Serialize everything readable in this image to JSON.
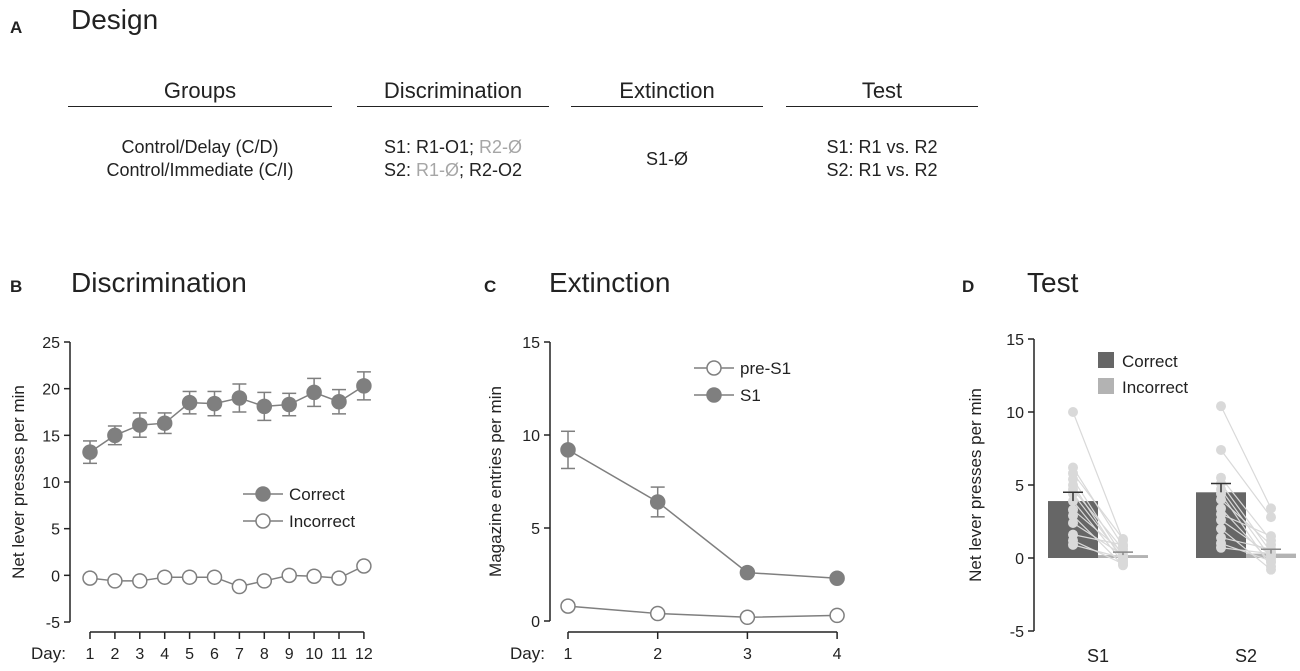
{
  "panel_a": {
    "letter": "A",
    "title": "Design",
    "headers": [
      "Groups",
      "Discrimination",
      "Extinction",
      "Test"
    ],
    "groups": [
      "Control/Delay (C/D)",
      "Control/Immediate (C/I)"
    ],
    "discrimination": {
      "row1": {
        "a": "S1: R1-O1; ",
        "b": "R2-Ø"
      },
      "row2": {
        "a": "S2: ",
        "b": "R1-Ø",
        "c": "; R2-O2"
      }
    },
    "extinction": "S1-Ø",
    "test": [
      "S1: R1 vs. R2",
      "S2: R1 vs. R2"
    ]
  },
  "colors": {
    "dark": "#7f7f7f",
    "axis": "#222222",
    "bar_correct": "#666666",
    "bar_incorrect": "#b3b3b3",
    "individual": "#d9d9d9",
    "text_gray": "#a6a6a6"
  },
  "chart_data": [
    {
      "id": "B",
      "letter": "B",
      "type": "line",
      "title": "Discrimination",
      "ylabel": "Net lever presses per min",
      "xlabel": "Day:",
      "ylim": [
        -5,
        25
      ],
      "yticks": [
        -5,
        0,
        5,
        10,
        15,
        20,
        25
      ],
      "x": [
        1,
        2,
        3,
        4,
        5,
        6,
        7,
        8,
        9,
        10,
        11,
        12
      ],
      "legend_position": "right",
      "series": [
        {
          "name": "Correct",
          "marker": "filled",
          "values": [
            13.2,
            15.0,
            16.1,
            16.3,
            18.5,
            18.4,
            19.0,
            18.1,
            18.3,
            19.6,
            18.6,
            20.3
          ],
          "sem": [
            1.2,
            1.0,
            1.3,
            1.1,
            1.2,
            1.3,
            1.5,
            1.5,
            1.2,
            1.5,
            1.3,
            1.5
          ]
        },
        {
          "name": "Incorrect",
          "marker": "open",
          "values": [
            -0.3,
            -0.6,
            -0.6,
            -0.2,
            -0.2,
            -0.2,
            -1.2,
            -0.6,
            0.0,
            -0.1,
            -0.3,
            1.0
          ],
          "sem": [
            0,
            0,
            0,
            0,
            0,
            0,
            0,
            0,
            0,
            0,
            0,
            0
          ]
        }
      ]
    },
    {
      "id": "C",
      "letter": "C",
      "type": "line",
      "title": "Extinction",
      "ylabel": "Magazine entries per min",
      "xlabel": "Day:",
      "ylim": [
        0,
        15
      ],
      "yticks": [
        0,
        5,
        10,
        15
      ],
      "x": [
        1,
        2,
        3,
        4
      ],
      "legend_position": "top-right",
      "series": [
        {
          "name": "pre-S1",
          "marker": "open",
          "values": [
            0.8,
            0.4,
            0.2,
            0.3
          ],
          "sem": [
            0,
            0,
            0,
            0
          ]
        },
        {
          "name": "S1",
          "marker": "filled",
          "values": [
            9.2,
            6.4,
            2.6,
            2.3
          ],
          "sem": [
            1.0,
            0.8,
            0,
            0
          ]
        }
      ]
    },
    {
      "id": "D",
      "letter": "D",
      "type": "bar",
      "title": "Test",
      "ylabel": "Net lever presses per min",
      "ylim": [
        -5,
        15
      ],
      "yticks": [
        -5,
        0,
        5,
        10,
        15
      ],
      "categories": [
        "S1",
        "S2"
      ],
      "legend_position": "top-left",
      "series": [
        {
          "name": "Correct",
          "values": [
            3.9,
            4.5
          ],
          "sem": [
            0.6,
            0.6
          ]
        },
        {
          "name": "Incorrect",
          "values": [
            0.2,
            0.3
          ],
          "sem": [
            0.2,
            0.3
          ]
        }
      ],
      "individual_pairs": [
        [
          [
            10.0,
            1.2
          ],
          [
            6.2,
            0.8
          ],
          [
            5.8,
            1.3
          ],
          [
            5.4,
            0.1
          ],
          [
            5.0,
            -0.2
          ],
          [
            4.7,
            0.6
          ],
          [
            4.4,
            0.0
          ],
          [
            3.9,
            -0.3
          ],
          [
            3.3,
            0.4
          ],
          [
            2.9,
            -0.5
          ],
          [
            2.4,
            0.2
          ],
          [
            1.6,
            0.9
          ],
          [
            1.2,
            -0.4
          ],
          [
            0.9,
            0.0
          ]
        ],
        [
          [
            10.4,
            3.4
          ],
          [
            7.4,
            2.8
          ],
          [
            5.5,
            1.2
          ],
          [
            5.1,
            0.4
          ],
          [
            4.7,
            0.0
          ],
          [
            4.4,
            -0.6
          ],
          [
            4.0,
            0.9
          ],
          [
            3.4,
            -0.3
          ],
          [
            3.0,
            1.5
          ],
          [
            2.6,
            0.2
          ],
          [
            2.0,
            -0.8
          ],
          [
            1.4,
            0.6
          ],
          [
            1.0,
            -0.2
          ],
          [
            0.7,
            0.3
          ]
        ]
      ]
    }
  ]
}
